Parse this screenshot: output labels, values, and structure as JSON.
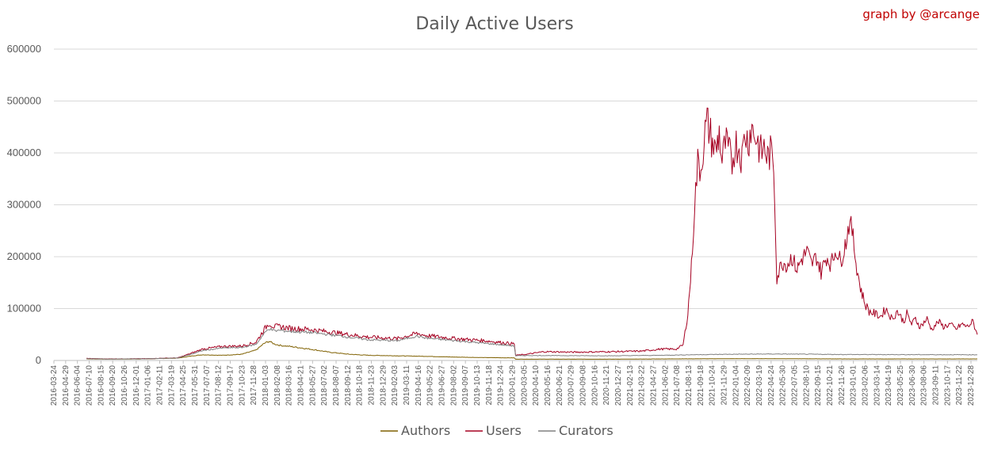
{
  "chart_data": {
    "type": "line",
    "title": "Daily Active Users",
    "credit": "graph by @arcange",
    "ylim": [
      0,
      600000
    ],
    "yticks": [
      0,
      100000,
      200000,
      300000,
      400000,
      500000,
      600000
    ],
    "grid": true,
    "legend_placement": "bottom-center",
    "x_start": "2016-03-24",
    "x_end": "2024-02-15",
    "xticks": [
      "2016-03-24",
      "2016-04-29",
      "2016-06-04",
      "2016-07-10",
      "2016-08-15",
      "2016-09-20",
      "2016-10-26",
      "2016-12-01",
      "2017-01-06",
      "2017-02-11",
      "2017-03-19",
      "2017-04-25",
      "2017-05-31",
      "2017-07-07",
      "2017-08-12",
      "2017-09-17",
      "2017-10-23",
      "2017-11-28",
      "2018-01-03",
      "2018-02-08",
      "2018-03-16",
      "2018-04-21",
      "2018-05-27",
      "2018-07-02",
      "2018-08-07",
      "2018-09-12",
      "2018-10-18",
      "2018-11-23",
      "2018-12-29",
      "2019-02-03",
      "2019-03-11",
      "2019-04-16",
      "2019-05-22",
      "2019-06-27",
      "2019-08-02",
      "2019-09-07",
      "2019-10-13",
      "2019-11-18",
      "2019-12-24",
      "2020-01-29",
      "2020-03-05",
      "2020-04-10",
      "2020-05-16",
      "2020-06-21",
      "2020-07-29",
      "2020-09-08",
      "2020-10-16",
      "2020-11-21",
      "2020-12-27",
      "2021-02-13",
      "2021-03-22",
      "2021-04-27",
      "2021-06-02",
      "2021-07-08",
      "2021-08-13",
      "2021-09-18",
      "2021-10-24",
      "2021-11-29",
      "2022-01-04",
      "2022-02-09",
      "2022-03-19",
      "2022-04-24",
      "2022-05-30",
      "2022-07-05",
      "2022-08-10",
      "2022-09-15",
      "2022-10-21",
      "2022-11-26",
      "2023-01-01",
      "2023-02-06",
      "2023-03-14",
      "2023-04-19",
      "2023-05-25",
      "2023-06-30",
      "2023-08-06",
      "2023-09-11",
      "2023-10-17",
      "2023-11-22",
      "2023-12-28"
    ],
    "series": [
      {
        "name": "Authors",
        "color": "#7f6000",
        "x": [
          "2016-07-04",
          "2016-09-01",
          "2017-01-01",
          "2017-04-15",
          "2017-06-01",
          "2017-07-01",
          "2017-09-01",
          "2017-11-01",
          "2017-12-15",
          "2018-01-10",
          "2018-01-25",
          "2018-02-10",
          "2018-03-01",
          "2018-04-01",
          "2018-06-01",
          "2018-08-01",
          "2018-10-01",
          "2018-12-01",
          "2019-03-01",
          "2019-06-01",
          "2019-09-01",
          "2019-12-01",
          "2020-03-01",
          "2020-03-05",
          "2020-06-01",
          "2021-01-01",
          "2021-06-01",
          "2022-01-01",
          "2022-06-01",
          "2023-01-01",
          "2024-02-15"
        ],
        "y": [
          3000,
          2500,
          3000,
          4500,
          9000,
          11000,
          10000,
          12000,
          20000,
          33000,
          37000,
          32000,
          29000,
          27000,
          22000,
          16000,
          12000,
          10000,
          9000,
          8000,
          6500,
          5500,
          5000,
          2500,
          2500,
          2500,
          3000,
          3500,
          3500,
          3000,
          3000
        ]
      },
      {
        "name": "Users",
        "color": "#a50021",
        "x": [
          "2016-07-04",
          "2016-09-01",
          "2017-01-01",
          "2017-04-15",
          "2017-06-01",
          "2017-07-01",
          "2017-09-01",
          "2017-11-01",
          "2017-12-15",
          "2018-01-10",
          "2018-01-25",
          "2018-02-10",
          "2018-03-01",
          "2018-04-01",
          "2018-06-01",
          "2018-08-01",
          "2018-10-01",
          "2018-12-01",
          "2019-03-01",
          "2019-05-01",
          "2019-06-01",
          "2019-09-01",
          "2019-12-01",
          "2020-03-01",
          "2020-03-05",
          "2020-04-10",
          "2020-06-01",
          "2020-09-01",
          "2021-01-01",
          "2021-04-01",
          "2021-06-01",
          "2021-07-20",
          "2021-08-10",
          "2021-08-25",
          "2021-09-05",
          "2021-09-15",
          "2021-09-25",
          "2021-10-05",
          "2021-10-15",
          "2021-10-24",
          "2021-11-01",
          "2021-11-10",
          "2021-11-20",
          "2021-12-01",
          "2021-12-10",
          "2021-12-20",
          "2022-01-01",
          "2022-01-10",
          "2022-01-20",
          "2022-02-01",
          "2022-02-10",
          "2022-02-20",
          "2022-03-01",
          "2022-03-10",
          "2022-03-19",
          "2022-04-01",
          "2022-04-10",
          "2022-04-20",
          "2022-05-01",
          "2022-05-10",
          "2022-05-20",
          "2022-05-30",
          "2022-06-05",
          "2022-06-15",
          "2022-07-01",
          "2022-07-15",
          "2022-08-01",
          "2022-08-15",
          "2022-09-01",
          "2022-09-15",
          "2022-10-01",
          "2022-10-15",
          "2022-11-01",
          "2022-11-15",
          "2022-12-01",
          "2022-12-15",
          "2023-01-01",
          "2023-01-10",
          "2023-01-20",
          "2023-02-01",
          "2023-02-15",
          "2023-03-01",
          "2023-03-14",
          "2023-04-01",
          "2023-04-19",
          "2023-05-05",
          "2023-05-25",
          "2023-06-10",
          "2023-06-30",
          "2023-07-10",
          "2023-07-25",
          "2023-08-06",
          "2023-08-20",
          "2023-09-11",
          "2023-09-25",
          "2023-10-17",
          "2023-11-01",
          "2023-11-22",
          "2023-12-10",
          "2023-12-28",
          "2024-01-15",
          "2024-02-01",
          "2024-02-15"
        ],
        "y": [
          4000,
          3000,
          3500,
          5000,
          15000,
          22000,
          27000,
          28000,
          35000,
          60000,
          72000,
          65000,
          65000,
          62000,
          60000,
          55000,
          50000,
          45000,
          42000,
          52000,
          48000,
          42000,
          38000,
          32000,
          10000,
          12000,
          17000,
          16000,
          17000,
          18000,
          22000,
          22000,
          30000,
          90000,
          180000,
          300000,
          380000,
          370000,
          430000,
          460000,
          440000,
          420000,
          400000,
          440000,
          380000,
          420000,
          400000,
          380000,
          420000,
          410000,
          390000,
          440000,
          420000,
          450000,
          440000,
          420000,
          400000,
          410000,
          390000,
          400000,
          380000,
          160000,
          170000,
          190000,
          185000,
          200000,
          175000,
          195000,
          210000,
          185000,
          200000,
          170000,
          200000,
          185000,
          215000,
          190000,
          230000,
          265000,
          250000,
          190000,
          140000,
          110000,
          95000,
          90000,
          85000,
          100000,
          80000,
          95000,
          75000,
          90000,
          70000,
          80000,
          65000,
          80000,
          60000,
          75000,
          65000,
          70000,
          60000,
          70000,
          65000,
          75000,
          50000
        ]
      },
      {
        "name": "Curators",
        "color": "#808080",
        "x": [
          "2016-07-04",
          "2016-09-01",
          "2017-01-01",
          "2017-04-15",
          "2017-06-01",
          "2017-07-01",
          "2017-09-01",
          "2017-11-01",
          "2017-12-15",
          "2018-01-10",
          "2018-01-25",
          "2018-02-10",
          "2018-03-01",
          "2018-04-01",
          "2018-06-01",
          "2018-08-01",
          "2018-10-01",
          "2018-12-01",
          "2019-03-01",
          "2019-05-01",
          "2019-06-01",
          "2019-09-01",
          "2019-12-01",
          "2020-03-01",
          "2020-03-05",
          "2020-04-10",
          "2020-06-01",
          "2021-01-01",
          "2021-06-01",
          "2021-09-01",
          "2022-01-01",
          "2022-06-01",
          "2023-01-01",
          "2024-02-15"
        ],
        "y": [
          3500,
          2800,
          3200,
          4800,
          13000,
          19000,
          24000,
          25000,
          31000,
          52000,
          62000,
          57000,
          58000,
          56000,
          54000,
          50000,
          45000,
          40000,
          38000,
          47000,
          43000,
          38000,
          33000,
          28000,
          9000,
          9500,
          9500,
          9000,
          10000,
          11000,
          12000,
          12500,
          11500,
          11000
        ]
      }
    ]
  }
}
